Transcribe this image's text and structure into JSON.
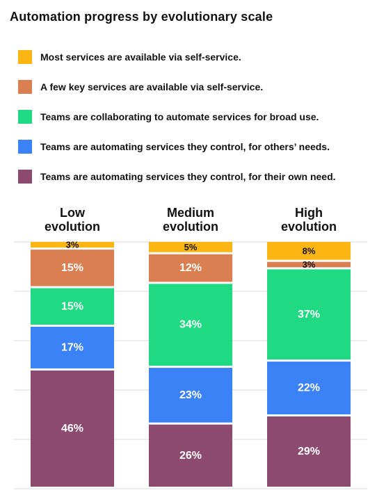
{
  "title": "Automation progress by evolutionary scale",
  "legend": [
    {
      "label": "Most services are available via self-service.",
      "color": "#FBB614"
    },
    {
      "label": "A few key services are available via self-service.",
      "color": "#DA7F52"
    },
    {
      "label": "Teams are collaborating to automate services for broad use.",
      "color": "#1FDA82"
    },
    {
      "label": "Teams are automating services they control, for others’ needs.",
      "color": "#3B82F6"
    },
    {
      "label": "Teams are automating services they control, for their own need.",
      "color": "#8B4A6E"
    }
  ],
  "chart_data": {
    "type": "bar",
    "stacked": true,
    "normalized": true,
    "title": "Automation progress by evolutionary scale",
    "categories": [
      {
        "line1": "Low",
        "line2": "evolution"
      },
      {
        "line1": "Medium",
        "line2": "evolution"
      },
      {
        "line1": "High",
        "line2": "evolution"
      }
    ],
    "series": [
      {
        "name": "Most services are available via self-service.",
        "color": "#FBB614",
        "values": [
          3,
          5,
          8
        ],
        "labels": [
          "3%",
          "5%",
          "8%"
        ]
      },
      {
        "name": "A few key services are available via self-service.",
        "color": "#DA7F52",
        "values": [
          15,
          12,
          3
        ],
        "labels": [
          "15%",
          "12%",
          "3%"
        ]
      },
      {
        "name": "Teams are collaborating to automate services for broad use.",
        "color": "#1FDA82",
        "values": [
          15,
          34,
          37
        ],
        "labels": [
          "15%",
          "34%",
          "37%"
        ]
      },
      {
        "name": "Teams are automating services they control, for others’ needs.",
        "color": "#3B82F6",
        "values": [
          17,
          23,
          22
        ],
        "labels": [
          "17%",
          "23%",
          "22%"
        ]
      },
      {
        "name": "Teams are automating services they control, for their own need.",
        "color": "#8B4A6E",
        "values": [
          46,
          26,
          29
        ],
        "labels": [
          "46%",
          "26%",
          "29%"
        ]
      }
    ],
    "grid": true
  }
}
